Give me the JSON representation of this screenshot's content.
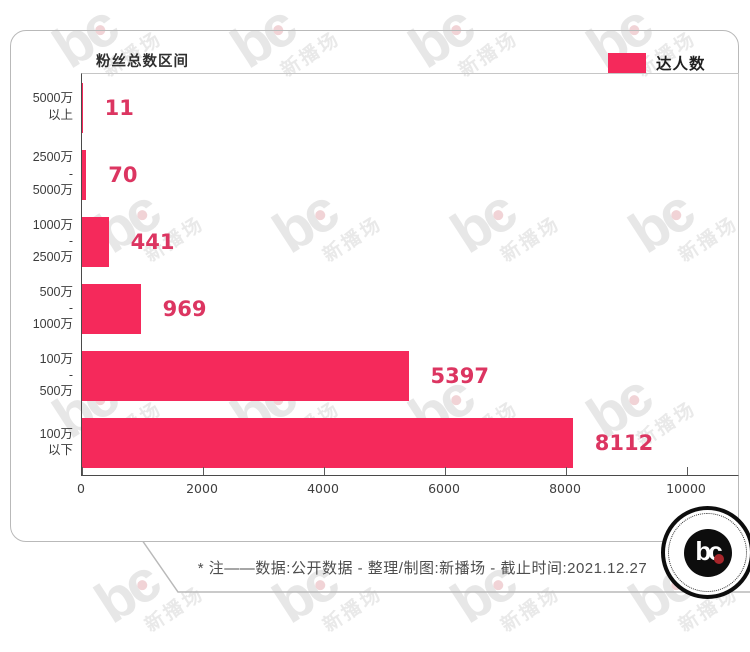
{
  "watermark": {
    "logo_text": "bc",
    "brand_text": "新播场"
  },
  "chart_data": {
    "type": "bar",
    "orientation": "horizontal",
    "title": "粉丝总数区间",
    "legend": [
      {
        "label": "达人数",
        "color": "#F5295B"
      }
    ],
    "legend_position": "top-right",
    "grid": false,
    "categories": [
      "5000万以上",
      "2500万-5000万",
      "1000万-2500万",
      "500万-1000万",
      "100万-500万",
      "100万以下"
    ],
    "category_lines": [
      [
        "5000万",
        "以上"
      ],
      [
        "2500万",
        "-",
        "5000万"
      ],
      [
        "1000万",
        "-",
        "2500万"
      ],
      [
        "500万",
        "-",
        "1000万"
      ],
      [
        "100万",
        "-",
        "500万"
      ],
      [
        "100万",
        "以下"
      ]
    ],
    "values": [
      11,
      70,
      441,
      969,
      5397,
      8112
    ],
    "xlim": [
      0,
      10000
    ],
    "x_ticks": [
      0,
      2000,
      4000,
      6000,
      8000,
      10000
    ],
    "bar_color": "#F5295B",
    "value_label_color": "#DC3561"
  },
  "footer": {
    "note": "* 注——数据:公开数据  -  整理/制图:新播场  -  截止时间:2021.12.27"
  },
  "logo": {
    "text": "bc"
  }
}
